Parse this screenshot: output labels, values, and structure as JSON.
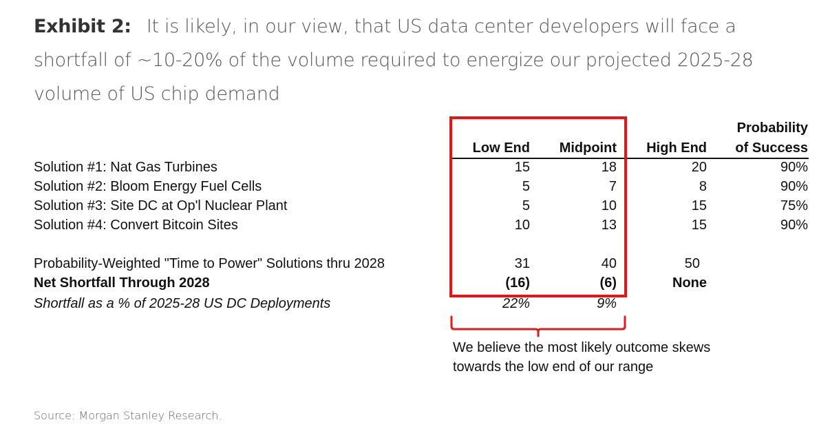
{
  "title": {
    "label": "Exhibit 2:",
    "text": "It is likely, in our view, that US data center developers will face a shortfall of ~10-20% of the volume required to energize our projected 2025-28 volume of US chip demand"
  },
  "table": {
    "headers": {
      "low": "Low End",
      "mid": "Midpoint",
      "high": "High End",
      "prob_line1": "Probability",
      "prob_line2": "of Success"
    },
    "rows": [
      {
        "label": "Solution #1: Nat Gas Turbines",
        "low": "15",
        "mid": "18",
        "high": "20",
        "prob": "90%"
      },
      {
        "label": "Solution #2: Bloom Energy Fuel Cells",
        "low": "5",
        "mid": "7",
        "high": "8",
        "prob": "90%"
      },
      {
        "label": "Solution #3: Site DC at Op'l Nuclear Plant",
        "low": "5",
        "mid": "10",
        "high": "15",
        "prob": "75%"
      },
      {
        "label": "Solution #4: Convert Bitcoin Sites",
        "low": "10",
        "mid": "13",
        "high": "15",
        "prob": "90%"
      }
    ],
    "summary": [
      {
        "label": "Probability-Weighted \"Time to Power\" Solutions thru 2028",
        "low": "31",
        "mid": "40",
        "high": "50"
      },
      {
        "label": "Net Shortfall Through 2028",
        "low": "(16)",
        "mid": "(6)",
        "high": "None"
      },
      {
        "label": "Shortfall as a % of 2025-28 US DC Deployments",
        "low": "22%",
        "mid": "9%"
      }
    ]
  },
  "annotation": {
    "text": "We believe the most likely outcome skews towards the low end of our range",
    "highlight_color": "#ee1111"
  },
  "source": "Source: Morgan Stanley Research."
}
